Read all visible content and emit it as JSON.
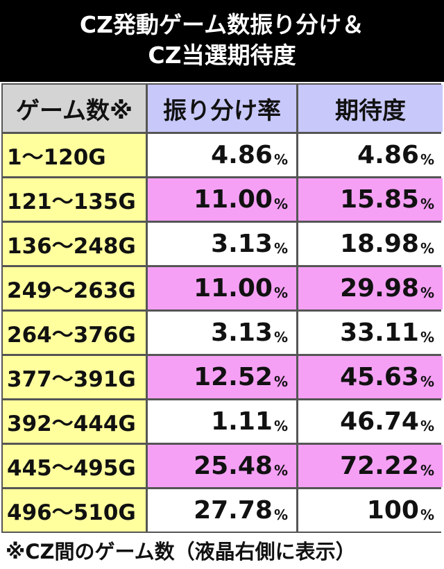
{
  "header": {
    "title_lines": [
      "CZ発動ゲーム数振り分け＆",
      "CZ当選期待度"
    ]
  },
  "table": {
    "columns": [
      "ゲーム数※",
      "振り分け率",
      "期待度"
    ],
    "rows": [
      [
        "1〜120G",
        {
          "value": "4.86",
          "unit": "%"
        },
        {
          "value": "4.86",
          "unit": "%"
        }
      ],
      [
        "121〜135G",
        {
          "value": "11.00",
          "unit": "%"
        },
        {
          "value": "15.85",
          "unit": "%"
        }
      ],
      [
        "136〜248G",
        {
          "value": "3.13",
          "unit": "%"
        },
        {
          "value": "18.98",
          "unit": "%"
        }
      ],
      [
        "249〜263G",
        {
          "value": "11.00",
          "unit": "%"
        },
        {
          "value": "29.98",
          "unit": "%"
        }
      ],
      [
        "264〜376G",
        {
          "value": "3.13",
          "unit": "%"
        },
        {
          "value": "33.11",
          "unit": "%"
        }
      ],
      [
        "377〜391G",
        {
          "value": "12.52",
          "unit": "%"
        },
        {
          "value": "45.63",
          "unit": "%"
        }
      ],
      [
        "392〜444G",
        {
          "value": "1.11",
          "unit": "%"
        },
        {
          "value": "46.74",
          "unit": "%"
        }
      ],
      [
        "445〜495G",
        {
          "value": "25.48",
          "unit": "%"
        },
        {
          "value": "72.22",
          "unit": "%"
        }
      ],
      [
        "496〜510G",
        {
          "value": "27.78",
          "unit": "%"
        },
        {
          "value": "100",
          "unit": "%"
        }
      ]
    ]
  },
  "footnote": "※CZ間のゲーム数（液晶右側に表示）"
}
